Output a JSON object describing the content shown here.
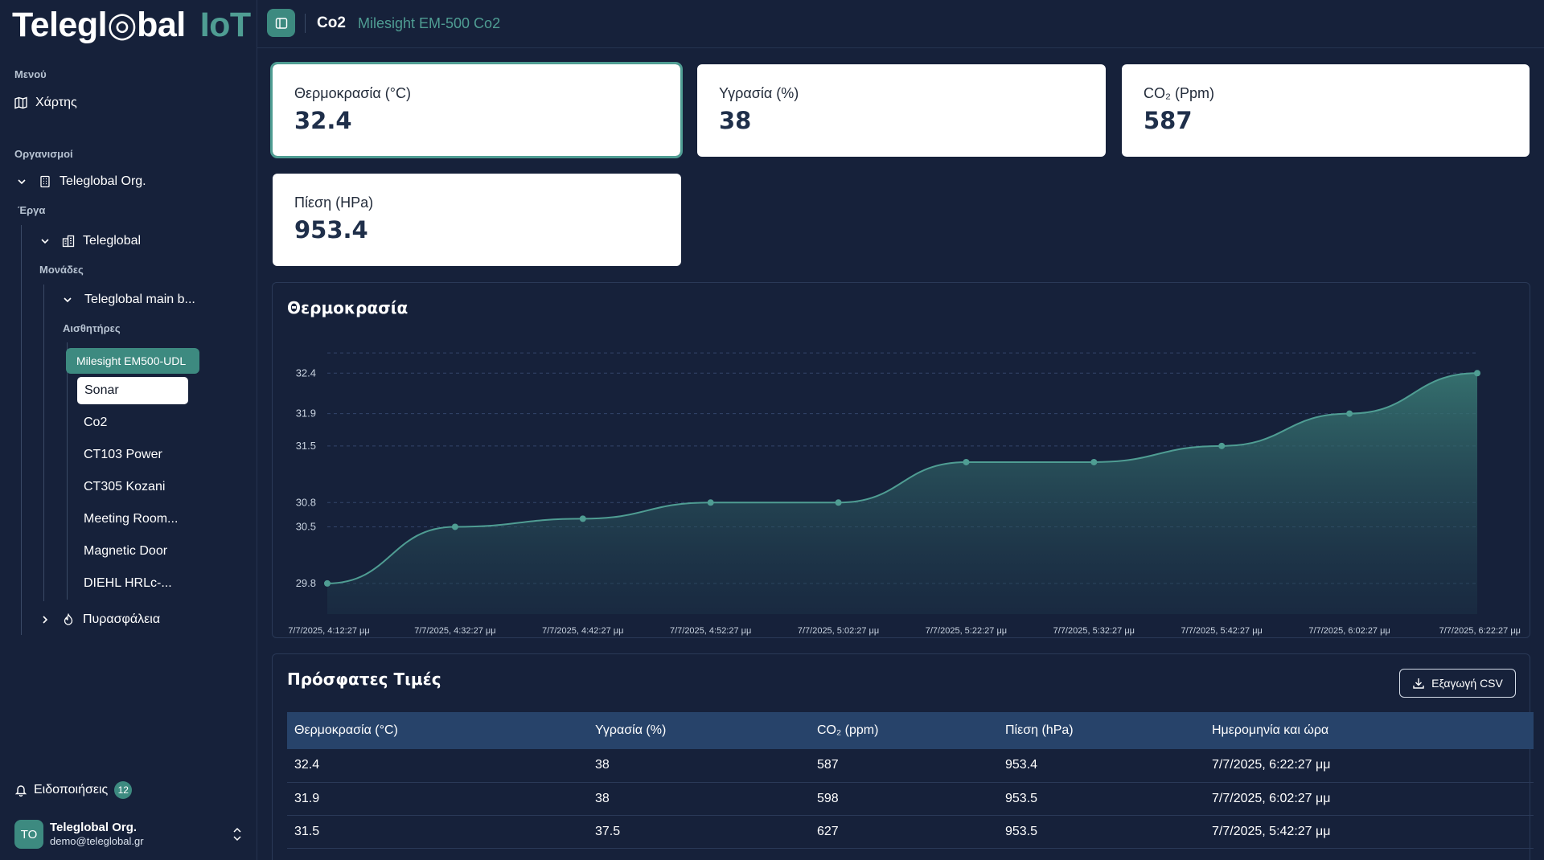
{
  "app": {
    "logo_main": "Telegl◎bal",
    "logo_suffix": "IoT"
  },
  "sidebar": {
    "menu_heading": "Μενού",
    "map_label": "Χάρτης",
    "orgs_heading": "Οργανισμοί",
    "org_name": "Teleglobal Org.",
    "projects_heading": "Έργα",
    "project_name": "Teleglobal",
    "units_heading": "Μονάδες",
    "unit_name": "Teleglobal main b...",
    "sensors_heading": "Αισθητήρες",
    "sensors": [
      {
        "label": "Milesight EM500-UDL",
        "state": "active"
      },
      {
        "label": "Sonar",
        "state": "hover"
      },
      {
        "label": "Co2",
        "state": "normal"
      },
      {
        "label": "CT103 Power",
        "state": "normal"
      },
      {
        "label": "CT305 Kozani",
        "state": "normal"
      },
      {
        "label": "Meeting Room...",
        "state": "normal"
      },
      {
        "label": "Magnetic Door",
        "state": "normal"
      },
      {
        "label": "DIEHL HRLc-...",
        "state": "normal"
      }
    ],
    "fire_unit": "Πυρασφάλεια",
    "notifications_label": "Ειδοποιήσεις",
    "notifications_count": "12",
    "user_initials": "TO",
    "user_name": "Teleglobal Org.",
    "user_email": "demo@teleglobal.gr"
  },
  "header": {
    "title": "Co2",
    "subtitle": "Milesight EM-500 Co2"
  },
  "cards": [
    {
      "label": "Θερμοκρασία (°C)",
      "value": "32.4"
    },
    {
      "label": "Υγρασία (%)",
      "value": "38"
    },
    {
      "label": "CO₂ (Ppm)",
      "value": "587"
    },
    {
      "label": "Πίεση (HPa)",
      "value": "953.4"
    }
  ],
  "chart_panel": {
    "title": "Θερμοκρασία"
  },
  "chart_data": {
    "type": "area",
    "title": "Θερμοκρασία",
    "x": [
      "7/7/2025, 4:12:27 μμ",
      "7/7/2025, 4:32:27 μμ",
      "7/7/2025, 4:42:27 μμ",
      "7/7/2025, 4:52:27 μμ",
      "7/7/2025, 5:02:27 μμ",
      "7/7/2025, 5:22:27 μμ",
      "7/7/2025, 5:32:27 μμ",
      "7/7/2025, 5:42:27 μμ",
      "7/7/2025, 6:02:27 μμ",
      "7/7/2025, 6:22:27 μμ"
    ],
    "values": [
      29.8,
      30.5,
      30.6,
      30.8,
      30.8,
      31.3,
      31.3,
      31.5,
      31.9,
      32.4
    ],
    "yticks": [
      29.8,
      30.5,
      30.8,
      31.5,
      31.9,
      32.4
    ],
    "ylim": [
      29.6,
      32.8
    ],
    "grid": true,
    "color": "#4f9d93"
  },
  "table": {
    "title": "Πρόσφατες Τιμές",
    "export_label": "Εξαγωγή CSV",
    "headers": [
      "Θερμοκρασία (°C)",
      "Υγρασία (%)",
      "CO₂ (ppm)",
      "Πίεση (hPa)",
      "Ημερομηνία και ώρα"
    ],
    "rows": [
      [
        "32.4",
        "38",
        "587",
        "953.4",
        "7/7/2025, 6:22:27 μμ"
      ],
      [
        "31.9",
        "38",
        "598",
        "953.5",
        "7/7/2025, 6:02:27 μμ"
      ],
      [
        "31.5",
        "37.5",
        "627",
        "953.5",
        "7/7/2025, 5:42:27 μμ"
      ]
    ]
  }
}
